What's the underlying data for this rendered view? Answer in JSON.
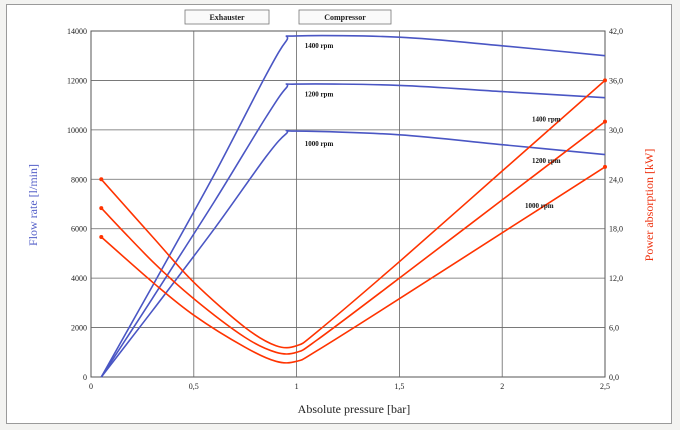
{
  "chart_data": {
    "type": "line",
    "xlabel": "Absolute pressure [bar]",
    "ylabel": "Flow rate [l/min]",
    "ylabel_right": "Power absorption [kW]",
    "xlim": [
      0,
      2.5
    ],
    "ylim": [
      0,
      14000
    ],
    "ylim_right": [
      0,
      42
    ],
    "x_ticks": [
      "0",
      "0,5",
      "1",
      "1,5",
      "2",
      "2,5"
    ],
    "y_ticks": [
      "0",
      "2000",
      "4000",
      "6000",
      "8000",
      "10000",
      "12000",
      "14000"
    ],
    "y_ticks_right": [
      "0,0",
      "6,0",
      "12,0",
      "18,0",
      "24,0",
      "30,0",
      "36,0",
      "42,0"
    ],
    "grid": true,
    "mode_labels": [
      "Exhauster",
      "Compressor"
    ],
    "colors": {
      "flow": "#4a56c4",
      "power": "#ff3300",
      "axis_left": "#5560c8",
      "axis_right": "#ee3311"
    },
    "series": [
      {
        "name": "1400 rpm",
        "group": "flow",
        "x": [
          0.05,
          0.3,
          0.6,
          0.85,
          0.95,
          1.0,
          1.5,
          2.0,
          2.5
        ],
        "y": [
          0,
          3700,
          8200,
          12200,
          13600,
          13800,
          13750,
          13400,
          13000
        ]
      },
      {
        "name": "1200 rpm",
        "group": "flow",
        "x": [
          0.05,
          0.3,
          0.6,
          0.85,
          0.95,
          1.0,
          1.5,
          2.0,
          2.5
        ],
        "y": [
          0,
          3200,
          7100,
          10500,
          11700,
          11850,
          11800,
          11550,
          11300
        ]
      },
      {
        "name": "1000 rpm",
        "group": "flow",
        "x": [
          0.05,
          0.3,
          0.6,
          0.85,
          0.95,
          1.0,
          1.5,
          2.0,
          2.5
        ],
        "y": [
          0,
          2700,
          6000,
          8900,
          9850,
          9950,
          9800,
          9400,
          9000
        ]
      },
      {
        "name": "1400 rpm",
        "group": "power",
        "x": [
          0.05,
          0.3,
          0.5,
          0.75,
          0.9,
          1.0,
          1.1,
          1.5,
          2.0,
          2.5
        ],
        "y": [
          24.0,
          17.0,
          11.5,
          6.0,
          3.8,
          3.8,
          5.5,
          14.0,
          25.0,
          36.0
        ]
      },
      {
        "name": "1200 rpm",
        "group": "power",
        "x": [
          0.05,
          0.3,
          0.5,
          0.75,
          0.9,
          1.0,
          1.1,
          1.5,
          2.0,
          2.5
        ],
        "y": [
          20.5,
          14.0,
          9.5,
          4.8,
          3.0,
          3.0,
          4.5,
          12.0,
          21.5,
          31.0
        ]
      },
      {
        "name": "1000 rpm",
        "group": "power",
        "x": [
          0.05,
          0.3,
          0.5,
          0.75,
          0.9,
          1.0,
          1.1,
          1.5,
          2.0,
          2.5
        ],
        "y": [
          17.0,
          11.5,
          7.5,
          3.6,
          1.9,
          1.9,
          3.2,
          9.5,
          17.5,
          25.5
        ]
      }
    ]
  }
}
